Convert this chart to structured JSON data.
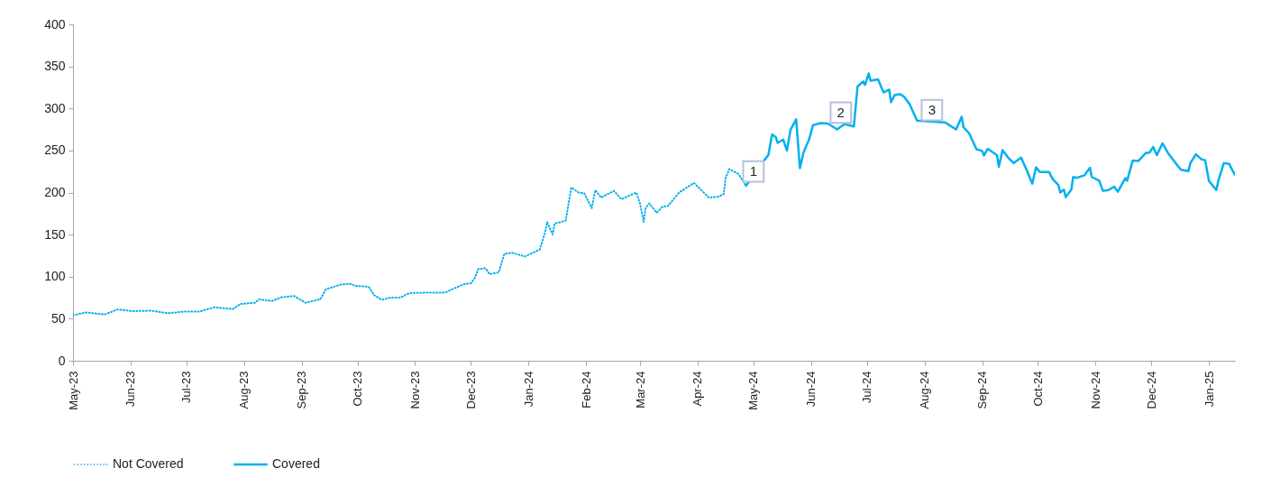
{
  "chart_data": {
    "type": "line",
    "xlim": [
      "2023-05-01",
      "2025-01-15"
    ],
    "xticks": [
      {
        "value": "2023-05-01",
        "label": "May-23"
      },
      {
        "value": "2023-06-01",
        "label": "Jun-23"
      },
      {
        "value": "2023-07-01",
        "label": "Jul-23"
      },
      {
        "value": "2023-08-01",
        "label": "Aug-23"
      },
      {
        "value": "2023-09-01",
        "label": "Sep-23"
      },
      {
        "value": "2023-10-01",
        "label": "Oct-23"
      },
      {
        "value": "2023-11-01",
        "label": "Nov-23"
      },
      {
        "value": "2023-12-01",
        "label": "Dec-23"
      },
      {
        "value": "2024-01-01",
        "label": "Jan-24"
      },
      {
        "value": "2024-02-01",
        "label": "Feb-24"
      },
      {
        "value": "2024-03-01",
        "label": "Mar-24"
      },
      {
        "value": "2024-04-01",
        "label": "Apr-24"
      },
      {
        "value": "2024-05-01",
        "label": "May-24"
      },
      {
        "value": "2024-06-01",
        "label": "Jun-24"
      },
      {
        "value": "2024-07-01",
        "label": "Jul-24"
      },
      {
        "value": "2024-08-01",
        "label": "Aug-24"
      },
      {
        "value": "2024-09-01",
        "label": "Sep-24"
      },
      {
        "value": "2024-10-01",
        "label": "Oct-24"
      },
      {
        "value": "2024-11-01",
        "label": "Nov-24"
      },
      {
        "value": "2024-12-01",
        "label": "Dec-24"
      },
      {
        "value": "2025-01-01",
        "label": "Jan-25"
      }
    ],
    "ylim": [
      0,
      400
    ],
    "yticks": [
      0,
      50,
      100,
      150,
      200,
      250,
      300,
      350,
      400
    ],
    "grid": false,
    "legend": "bottom",
    "series": [
      {
        "name": "Not Covered",
        "color": "#00b0f0",
        "line_style": "dotted",
        "x": [
          "2023-05-01",
          "2023-05-08",
          "2023-05-18",
          "2023-05-25",
          "2023-06-02",
          "2023-06-12",
          "2023-06-21",
          "2023-06-30",
          "2023-07-08",
          "2023-07-16",
          "2023-07-26",
          "2023-07-30",
          "2023-08-07",
          "2023-08-09",
          "2023-08-16",
          "2023-08-21",
          "2023-08-28",
          "2023-09-03",
          "2023-09-11",
          "2023-09-14",
          "2023-09-22",
          "2023-09-27",
          "2023-09-30",
          "2023-10-07",
          "2023-10-10",
          "2023-10-14",
          "2023-10-19",
          "2023-10-24",
          "2023-10-29",
          "2023-11-09",
          "2023-11-17",
          "2023-11-22",
          "2023-11-28",
          "2023-12-01",
          "2023-12-03",
          "2023-12-05",
          "2023-12-09",
          "2023-12-11",
          "2023-12-16",
          "2023-12-19",
          "2023-12-23",
          "2023-12-30",
          "2024-01-07",
          "2024-01-10",
          "2024-01-11",
          "2024-01-14",
          "2024-01-15",
          "2024-01-21",
          "2024-01-24",
          "2024-01-28",
          "2024-01-31",
          "2024-02-04",
          "2024-02-06",
          "2024-02-09",
          "2024-02-16",
          "2024-02-20",
          "2024-02-28",
          "2024-03-01",
          "2024-03-03",
          "2024-03-04",
          "2024-03-06",
          "2024-03-10",
          "2024-03-13",
          "2024-03-16",
          "2024-03-22",
          "2024-03-30",
          "2024-04-07",
          "2024-04-12",
          "2024-04-15",
          "2024-04-16",
          "2024-04-18",
          "2024-04-23",
          "2024-04-27"
        ],
        "values": [
          54,
          57.5,
          55,
          61,
          59,
          59.5,
          56.5,
          58.5,
          58.5,
          63.5,
          61.5,
          67.5,
          69,
          73,
          71,
          75.5,
          77,
          69,
          73,
          85,
          90.5,
          91.5,
          89,
          88,
          78,
          72.5,
          75,
          75,
          80.5,
          81,
          81,
          86,
          91.5,
          92,
          98,
          109,
          110,
          103,
          105,
          127,
          128.5,
          124,
          132,
          153,
          165,
          150,
          163,
          166.5,
          206,
          200,
          199,
          181.5,
          203,
          194,
          202,
          192,
          200,
          187,
          165,
          182,
          187,
          176,
          183,
          184,
          200,
          211.5,
          194,
          195,
          198,
          217,
          228,
          222,
          208
        ]
      },
      {
        "name": "Covered",
        "color": "#00b0f0",
        "line_style": "solid",
        "x": [
          "2024-04-27",
          "2024-05-07",
          "2024-05-09",
          "2024-05-11",
          "2024-05-13",
          "2024-05-14",
          "2024-05-17",
          "2024-05-19",
          "2024-05-20",
          "2024-05-21",
          "2024-05-24",
          "2024-05-26",
          "2024-05-28",
          "2024-05-31",
          "2024-06-02",
          "2024-06-06",
          "2024-06-10",
          "2024-06-15",
          "2024-06-19",
          "2024-06-24",
          "2024-06-26",
          "2024-06-29",
          "2024-06-30",
          "2024-07-02",
          "2024-07-03",
          "2024-07-07",
          "2024-07-10",
          "2024-07-13",
          "2024-07-14",
          "2024-07-16",
          "2024-07-19",
          "2024-07-21",
          "2024-07-24",
          "2024-07-28",
          "2024-08-12",
          "2024-08-18",
          "2024-08-21",
          "2024-08-22",
          "2024-08-25",
          "2024-08-29",
          "2024-09-01",
          "2024-09-02",
          "2024-09-04",
          "2024-09-09",
          "2024-09-10",
          "2024-09-12",
          "2024-09-15",
          "2024-09-18",
          "2024-09-22",
          "2024-09-25",
          "2024-09-28",
          "2024-09-30",
          "2024-10-02",
          "2024-10-07",
          "2024-10-09",
          "2024-10-12",
          "2024-10-13",
          "2024-10-15",
          "2024-10-16",
          "2024-10-19",
          "2024-10-20",
          "2024-10-22",
          "2024-10-26",
          "2024-10-29",
          "2024-10-30",
          "2024-11-03",
          "2024-11-05",
          "2024-11-08",
          "2024-11-11",
          "2024-11-13",
          "2024-11-17",
          "2024-11-18",
          "2024-11-21",
          "2024-11-24",
          "2024-11-28",
          "2024-11-30",
          "2024-12-02",
          "2024-12-04",
          "2024-12-07",
          "2024-12-10",
          "2024-12-15",
          "2024-12-17",
          "2024-12-21",
          "2024-12-22",
          "2024-12-25",
          "2024-12-28",
          "2024-12-30",
          "2025-01-01",
          "2025-01-05",
          "2025-01-06",
          "2025-01-09",
          "2025-01-12",
          "2025-01-13",
          "2025-01-15"
        ],
        "values": [
          208,
          239,
          244.5,
          269,
          266,
          259,
          263,
          250,
          262.5,
          275,
          287,
          229,
          248,
          263.5,
          280,
          282.5,
          282,
          275,
          281.5,
          278.5,
          326,
          332,
          328,
          341.5,
          333,
          334.5,
          319,
          322.5,
          307.5,
          316,
          317,
          314,
          305,
          285.5,
          283.5,
          275,
          290,
          277.5,
          270.5,
          251.5,
          249.5,
          244,
          252,
          244.5,
          230.5,
          250.5,
          241.5,
          235,
          241.5,
          226.5,
          210.5,
          230,
          224.5,
          224.5,
          216,
          209,
          200,
          203.5,
          194.5,
          203.5,
          218.5,
          217.5,
          220.5,
          229.5,
          218.5,
          214,
          202,
          203,
          207,
          201,
          217,
          214,
          238,
          237.5,
          247,
          247.5,
          254,
          244.5,
          258.5,
          247,
          232.5,
          227,
          225.5,
          235,
          245.5,
          239.5,
          238.5,
          214,
          203,
          213.5,
          235,
          234,
          229,
          221
        ]
      }
    ],
    "annotations": [
      {
        "text": "1",
        "x": "2024-05-01",
        "y": 225
      },
      {
        "text": "2",
        "x": "2024-06-17",
        "y": 295
      },
      {
        "text": "3",
        "x": "2024-08-05",
        "y": 298
      }
    ]
  }
}
